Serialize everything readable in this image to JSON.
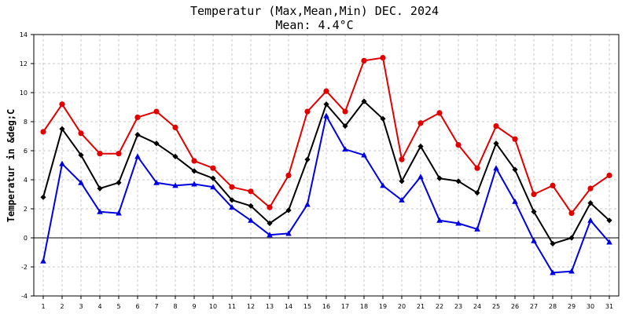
{
  "chart_data": {
    "type": "line",
    "title": "Temperatur (Max,Mean,Min) DEC. 2024",
    "subtitle": "Mean: 4.4°C",
    "xlabel": "",
    "ylabel": "Temperatur in &deg;C",
    "x": [
      1,
      2,
      3,
      4,
      5,
      6,
      7,
      8,
      9,
      10,
      11,
      12,
      13,
      14,
      15,
      16,
      17,
      18,
      19,
      20,
      21,
      22,
      23,
      24,
      25,
      26,
      27,
      28,
      29,
      30,
      31
    ],
    "ylim": [
      -4,
      14
    ],
    "yticks": [
      -4,
      -2,
      0,
      2,
      4,
      6,
      8,
      10,
      12,
      14
    ],
    "grid": true,
    "series": [
      {
        "key": "max",
        "color": "#e00000",
        "marker": "circle",
        "values": [
          7.3,
          9.2,
          7.2,
          5.8,
          5.8,
          8.3,
          8.7,
          7.6,
          5.3,
          4.8,
          3.5,
          3.2,
          2.1,
          4.3,
          8.7,
          10.1,
          8.7,
          12.2,
          12.4,
          5.4,
          7.9,
          8.6,
          6.4,
          4.8,
          7.7,
          6.8,
          3.0,
          3.6,
          1.7,
          3.4,
          4.3
        ]
      },
      {
        "key": "mean",
        "color": "#000000",
        "marker": "diamond",
        "values": [
          2.8,
          7.5,
          5.7,
          3.4,
          3.8,
          7.1,
          6.5,
          5.6,
          4.6,
          4.1,
          2.6,
          2.2,
          1.0,
          1.9,
          5.4,
          9.2,
          7.7,
          9.4,
          8.2,
          3.9,
          6.3,
          4.1,
          3.9,
          3.1,
          6.5,
          4.7,
          1.8,
          -0.4,
          0.0,
          2.4,
          1.2
        ]
      },
      {
        "key": "min",
        "color": "#0000e0",
        "marker": "triangle",
        "values": [
          -1.6,
          5.1,
          3.8,
          1.8,
          1.7,
          5.6,
          3.8,
          3.6,
          3.7,
          3.5,
          2.1,
          1.2,
          0.2,
          0.3,
          2.3,
          8.4,
          6.1,
          5.7,
          3.6,
          2.6,
          4.2,
          1.2,
          1.0,
          0.6,
          4.8,
          2.5,
          -0.2,
          -2.4,
          -2.3,
          1.2,
          -0.3
        ]
      }
    ]
  }
}
